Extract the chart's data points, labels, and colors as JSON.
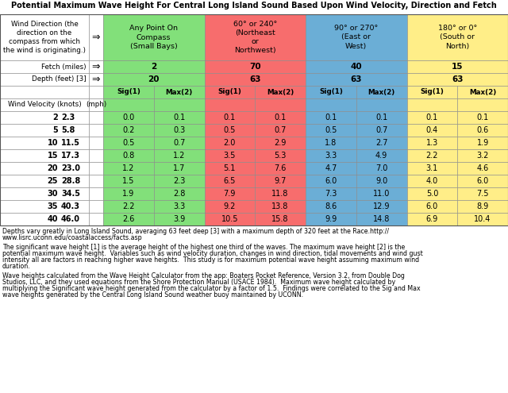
{
  "title": "Potential Maximum Wave Height For Central Long Island Sound Based Upon Wind Velocity, Direction and Fetch",
  "green": "#82E07A",
  "red": "#F76D6D",
  "blue": "#6BAED6",
  "yellow": "#FFEE88",
  "white": "#FFFFFF",
  "header_text": "Wind Direction (the\ndirection on the\ncompass from which\nthe wind is originating.)",
  "col_headers": [
    "Any Point On\nCompass\n(Small Bays)",
    "60° or 240°\n(Northeast\nor\nNorthwest)",
    "90° or 270°\n(East or\nWest)",
    "180° or 0°\n(South or\nNorth)"
  ],
  "fetch_vals": [
    "2",
    "70",
    "40",
    "15"
  ],
  "depth_vals": [
    "20",
    "63",
    "63",
    "63"
  ],
  "wind_vel_knots": [
    2,
    5,
    10,
    15,
    20,
    25,
    30,
    35,
    40
  ],
  "wind_vel_mph": [
    2.3,
    5.8,
    11.5,
    17.3,
    23.0,
    28.8,
    34.5,
    40.3,
    46.0
  ],
  "data_rows": [
    [
      0.0,
      0.1,
      0.1,
      0.1,
      0.1,
      0.1,
      0.1,
      0.1
    ],
    [
      0.2,
      0.3,
      0.5,
      0.7,
      0.5,
      0.7,
      0.4,
      0.6
    ],
    [
      0.5,
      0.7,
      2.0,
      2.9,
      1.8,
      2.7,
      1.3,
      1.9
    ],
    [
      0.8,
      1.2,
      3.5,
      5.3,
      3.3,
      4.9,
      2.2,
      3.2
    ],
    [
      1.2,
      1.7,
      5.1,
      7.6,
      4.7,
      7.0,
      3.1,
      4.6
    ],
    [
      1.5,
      2.3,
      6.5,
      9.7,
      6.0,
      9.0,
      4.0,
      6.0
    ],
    [
      1.9,
      2.8,
      7.9,
      11.8,
      7.3,
      11.0,
      5.0,
      7.5
    ],
    [
      2.2,
      3.3,
      9.2,
      13.8,
      8.6,
      12.9,
      6.0,
      8.9
    ],
    [
      2.6,
      3.9,
      10.5,
      15.8,
      9.9,
      14.8,
      6.9,
      10.4
    ]
  ],
  "footnote1": "Depths vary greatly in Long Island Sound, averaging 63 feet deep [3] with a maximum depth of 320 feet at the Race.http://\nwww.lisrc.uconn.edu/coastalaccess/facts.asp",
  "footnote2": "The significant wave height [1] is the average height of the highest one third of the waves. The maximum wave height [2] is the\npotential maximum wave height.  Variables such as wind velocity duration, changes in wind direction, tidal movements and wind gust\nintensity all are factors in reaching higher wave heights.  This study is for maximum potential wave height assuming maximum wind\nduration.",
  "footnote3": "Wave heights calculated from the Wave Height Calculator from the app: Boaters Pocket Reference, Version 3.2, from Double Dog\nStudios, LLC, and they used equations from the Shore Protection Manual (USACE 1984).  Maximum wave height calculated by\nmultiplying the Significant wave height generated from the calculator by a factor of 1.5.  Findings were correlated to the Sig and Max\nwave heights generated by the Central Long Island Sound weather buoy maintained by UCONN."
}
